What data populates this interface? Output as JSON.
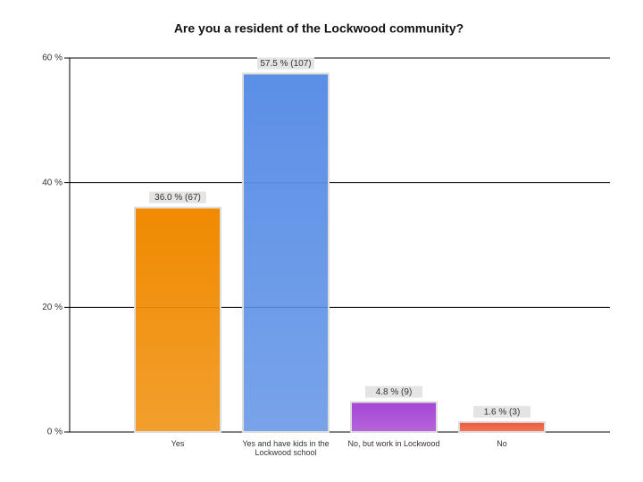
{
  "chart_data": {
    "type": "bar",
    "title": "Are you a resident of the Lockwood community?",
    "categories": [
      "Yes",
      "Yes and have kids in the Lockwood school",
      "No, but work in Lockwood",
      "No"
    ],
    "values": [
      36.0,
      57.5,
      4.8,
      1.6
    ],
    "value_labels": [
      "36.0 % (67)",
      "57.5 % (107)",
      "4.8 % (9)",
      "1.6 % (3)"
    ],
    "colors": [
      "#f08a00",
      "#5b8fe6",
      "#a545d4",
      "#ec5a3a"
    ],
    "ylim": [
      0,
      60
    ],
    "yticks": [
      {
        "value": 0,
        "label": "0 %"
      },
      {
        "value": 20,
        "label": "20 %"
      },
      {
        "value": 40,
        "label": "40 %"
      },
      {
        "value": 60,
        "label": "60 %"
      }
    ],
    "grid": true
  }
}
